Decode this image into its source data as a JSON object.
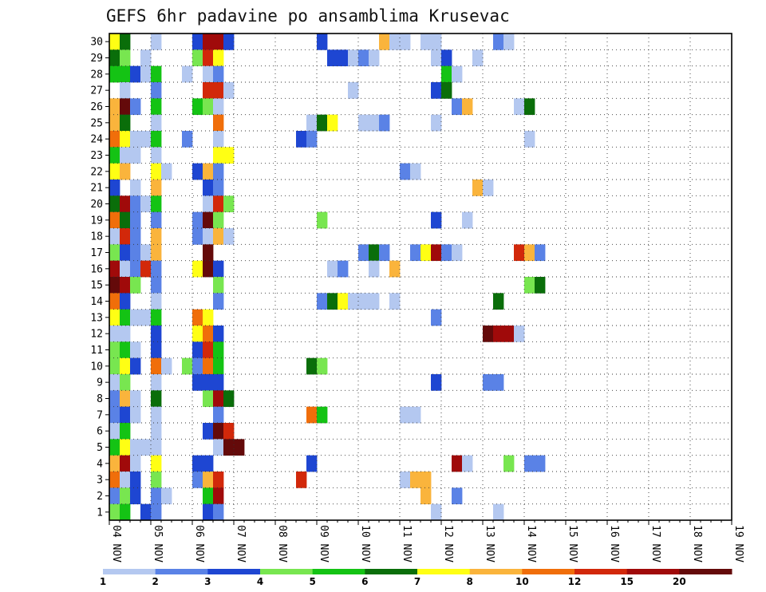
{
  "chart_data": {
    "type": "heatmap",
    "title": "GEFS 6hr padavine po ansamblima Krusevac",
    "y_categories": [
      "1",
      "2",
      "3",
      "4",
      "5",
      "6",
      "7",
      "8",
      "9",
      "10",
      "11",
      "12",
      "13",
      "14",
      "15",
      "16",
      "17",
      "18",
      "19",
      "20",
      "21",
      "22",
      "23",
      "24",
      "25",
      "26",
      "27",
      "28",
      "29",
      "30"
    ],
    "x_tick_labels": [
      "04 NOV",
      "05 NOV",
      "06 NOV",
      "07 NOV",
      "08 NOV",
      "09 NOV",
      "10 NOV",
      "11 NOV",
      "12 NOV",
      "13 NOV",
      "14 NOV",
      "15 NOV",
      "16 NOV",
      "17 NOV",
      "18 NOV",
      "19 NOV"
    ],
    "time_steps_per_day": 4,
    "grid": true,
    "colorbar": {
      "labels": [
        "1",
        "2",
        "3",
        "4",
        "5",
        "6",
        "7",
        "8",
        "10",
        "12",
        "15",
        "20"
      ],
      "colors": [
        "#b4c8f0",
        "#5a82e6",
        "#1e46d2",
        "#78e650",
        "#14c314",
        "#0a6e0a",
        "#ffff14",
        "#fab43c",
        "#f06e0a",
        "#d2280a",
        "#a00a0a",
        "#640a0a"
      ]
    },
    "cells": [
      [
        30,
        0,
        7
      ],
      [
        30,
        1,
        6
      ],
      [
        30,
        4,
        1
      ],
      [
        30,
        8,
        3
      ],
      [
        30,
        9,
        11
      ],
      [
        30,
        10,
        11
      ],
      [
        30,
        11,
        3
      ],
      [
        30,
        20,
        3
      ],
      [
        30,
        26,
        8
      ],
      [
        30,
        27,
        1
      ],
      [
        30,
        28,
        1
      ],
      [
        30,
        30,
        1
      ],
      [
        30,
        31,
        1
      ],
      [
        30,
        37,
        2
      ],
      [
        30,
        38,
        1
      ],
      [
        29,
        0,
        6
      ],
      [
        29,
        1,
        4
      ],
      [
        29,
        3,
        1
      ],
      [
        29,
        8,
        4
      ],
      [
        29,
        9,
        10
      ],
      [
        29,
        10,
        7
      ],
      [
        29,
        21,
        3
      ],
      [
        29,
        22,
        3
      ],
      [
        29,
        23,
        1
      ],
      [
        29,
        24,
        2
      ],
      [
        29,
        25,
        1
      ],
      [
        29,
        31,
        1
      ],
      [
        29,
        32,
        3
      ],
      [
        29,
        35,
        1
      ],
      [
        28,
        0,
        5
      ],
      [
        28,
        1,
        5
      ],
      [
        28,
        2,
        3
      ],
      [
        28,
        3,
        1
      ],
      [
        28,
        4,
        5
      ],
      [
        28,
        7,
        1
      ],
      [
        28,
        9,
        1
      ],
      [
        28,
        10,
        2
      ],
      [
        28,
        32,
        5
      ],
      [
        28,
        33,
        1
      ],
      [
        27,
        1,
        1
      ],
      [
        27,
        4,
        2
      ],
      [
        27,
        9,
        10
      ],
      [
        27,
        10,
        10
      ],
      [
        27,
        11,
        1
      ],
      [
        27,
        23,
        1
      ],
      [
        27,
        31,
        3
      ],
      [
        27,
        32,
        6
      ],
      [
        26,
        0,
        8
      ],
      [
        26,
        1,
        12
      ],
      [
        26,
        2,
        2
      ],
      [
        26,
        4,
        5
      ],
      [
        26,
        8,
        5
      ],
      [
        26,
        9,
        4
      ],
      [
        26,
        10,
        1
      ],
      [
        26,
        33,
        2
      ],
      [
        26,
        34,
        8
      ],
      [
        26,
        39,
        1
      ],
      [
        26,
        40,
        6
      ],
      [
        25,
        0,
        8
      ],
      [
        25,
        1,
        6
      ],
      [
        25,
        4,
        1
      ],
      [
        25,
        10,
        9
      ],
      [
        25,
        19,
        1
      ],
      [
        25,
        20,
        6
      ],
      [
        25,
        21,
        7
      ],
      [
        25,
        24,
        1
      ],
      [
        25,
        25,
        1
      ],
      [
        25,
        26,
        2
      ],
      [
        25,
        31,
        1
      ],
      [
        24,
        0,
        9
      ],
      [
        24,
        1,
        7
      ],
      [
        24,
        2,
        1
      ],
      [
        24,
        3,
        1
      ],
      [
        24,
        4,
        5
      ],
      [
        24,
        7,
        2
      ],
      [
        24,
        10,
        1
      ],
      [
        24,
        18,
        3
      ],
      [
        24,
        19,
        2
      ],
      [
        24,
        40,
        1
      ],
      [
        23,
        0,
        5
      ],
      [
        23,
        1,
        1
      ],
      [
        23,
        2,
        1
      ],
      [
        23,
        4,
        1
      ],
      [
        23,
        10,
        7
      ],
      [
        23,
        11,
        7
      ],
      [
        22,
        0,
        7
      ],
      [
        22,
        1,
        8
      ],
      [
        22,
        4,
        7
      ],
      [
        22,
        5,
        1
      ],
      [
        22,
        8,
        3
      ],
      [
        22,
        9,
        8
      ],
      [
        22,
        10,
        2
      ],
      [
        22,
        28,
        2
      ],
      [
        22,
        29,
        1
      ],
      [
        21,
        0,
        3
      ],
      [
        21,
        2,
        1
      ],
      [
        21,
        4,
        8
      ],
      [
        21,
        9,
        3
      ],
      [
        21,
        10,
        2
      ],
      [
        21,
        35,
        8
      ],
      [
        21,
        36,
        1
      ],
      [
        20,
        0,
        6
      ],
      [
        20,
        1,
        11
      ],
      [
        20,
        2,
        2
      ],
      [
        20,
        3,
        1
      ],
      [
        20,
        4,
        5
      ],
      [
        20,
        9,
        1
      ],
      [
        20,
        10,
        10
      ],
      [
        20,
        11,
        4
      ],
      [
        19,
        0,
        9
      ],
      [
        19,
        1,
        6
      ],
      [
        19,
        2,
        2
      ],
      [
        19,
        4,
        2
      ],
      [
        19,
        8,
        2
      ],
      [
        19,
        9,
        12
      ],
      [
        19,
        10,
        4
      ],
      [
        19,
        20,
        4
      ],
      [
        19,
        31,
        3
      ],
      [
        19,
        34,
        1
      ],
      [
        18,
        0,
        1
      ],
      [
        18,
        1,
        10
      ],
      [
        18,
        2,
        2
      ],
      [
        18,
        4,
        8
      ],
      [
        18,
        8,
        2
      ],
      [
        18,
        9,
        1
      ],
      [
        18,
        10,
        8
      ],
      [
        18,
        11,
        1
      ],
      [
        17,
        0,
        4
      ],
      [
        17,
        1,
        3
      ],
      [
        17,
        2,
        2
      ],
      [
        17,
        3,
        1
      ],
      [
        17,
        4,
        8
      ],
      [
        17,
        9,
        12
      ],
      [
        17,
        24,
        2
      ],
      [
        17,
        25,
        6
      ],
      [
        17,
        26,
        2
      ],
      [
        17,
        29,
        2
      ],
      [
        17,
        30,
        7
      ],
      [
        17,
        31,
        11
      ],
      [
        17,
        32,
        2
      ],
      [
        17,
        33,
        1
      ],
      [
        17,
        39,
        10
      ],
      [
        17,
        40,
        8
      ],
      [
        17,
        41,
        2
      ],
      [
        16,
        0,
        11
      ],
      [
        16,
        1,
        1
      ],
      [
        16,
        2,
        2
      ],
      [
        16,
        3,
        10
      ],
      [
        16,
        4,
        2
      ],
      [
        16,
        8,
        7
      ],
      [
        16,
        9,
        12
      ],
      [
        16,
        10,
        3
      ],
      [
        16,
        21,
        1
      ],
      [
        16,
        22,
        2
      ],
      [
        16,
        25,
        1
      ],
      [
        16,
        27,
        8
      ],
      [
        15,
        0,
        12
      ],
      [
        15,
        1,
        11
      ],
      [
        15,
        2,
        4
      ],
      [
        15,
        4,
        2
      ],
      [
        15,
        10,
        4
      ],
      [
        15,
        40,
        4
      ],
      [
        15,
        41,
        6
      ],
      [
        14,
        0,
        9
      ],
      [
        14,
        1,
        3
      ],
      [
        14,
        4,
        1
      ],
      [
        14,
        10,
        2
      ],
      [
        14,
        20,
        2
      ],
      [
        14,
        21,
        6
      ],
      [
        14,
        22,
        7
      ],
      [
        14,
        23,
        1
      ],
      [
        14,
        24,
        1
      ],
      [
        14,
        25,
        1
      ],
      [
        14,
        27,
        1
      ],
      [
        14,
        37,
        6
      ],
      [
        13,
        0,
        7
      ],
      [
        13,
        1,
        5
      ],
      [
        13,
        2,
        1
      ],
      [
        13,
        3,
        1
      ],
      [
        13,
        4,
        5
      ],
      [
        13,
        8,
        9
      ],
      [
        13,
        9,
        7
      ],
      [
        13,
        31,
        2
      ],
      [
        12,
        0,
        1
      ],
      [
        12,
        1,
        1
      ],
      [
        12,
        4,
        3
      ],
      [
        12,
        8,
        7
      ],
      [
        12,
        9,
        9
      ],
      [
        12,
        10,
        3
      ],
      [
        12,
        36,
        12
      ],
      [
        12,
        37,
        11
      ],
      [
        12,
        38,
        11
      ],
      [
        12,
        39,
        1
      ],
      [
        11,
        0,
        4
      ],
      [
        11,
        1,
        5
      ],
      [
        11,
        2,
        1
      ],
      [
        11,
        4,
        3
      ],
      [
        11,
        8,
        3
      ],
      [
        11,
        9,
        10
      ],
      [
        11,
        10,
        5
      ],
      [
        10,
        0,
        4
      ],
      [
        10,
        1,
        7
      ],
      [
        10,
        2,
        3
      ],
      [
        10,
        4,
        9
      ],
      [
        10,
        5,
        1
      ],
      [
        10,
        7,
        4
      ],
      [
        10,
        8,
        2
      ],
      [
        10,
        9,
        9
      ],
      [
        10,
        10,
        5
      ],
      [
        10,
        19,
        6
      ],
      [
        10,
        20,
        4
      ],
      [
        9,
        0,
        1
      ],
      [
        9,
        1,
        4
      ],
      [
        9,
        4,
        1
      ],
      [
        9,
        8,
        3
      ],
      [
        9,
        9,
        3
      ],
      [
        9,
        10,
        3
      ],
      [
        9,
        31,
        3
      ],
      [
        9,
        36,
        2
      ],
      [
        9,
        37,
        2
      ],
      [
        8,
        0,
        2
      ],
      [
        8,
        1,
        8
      ],
      [
        8,
        2,
        1
      ],
      [
        8,
        4,
        6
      ],
      [
        8,
        9,
        4
      ],
      [
        8,
        10,
        11
      ],
      [
        8,
        11,
        6
      ],
      [
        7,
        0,
        2
      ],
      [
        7,
        1,
        3
      ],
      [
        7,
        2,
        1
      ],
      [
        7,
        4,
        1
      ],
      [
        7,
        10,
        2
      ],
      [
        7,
        19,
        9
      ],
      [
        7,
        20,
        5
      ],
      [
        7,
        28,
        1
      ],
      [
        7,
        29,
        1
      ],
      [
        6,
        0,
        1
      ],
      [
        6,
        1,
        5
      ],
      [
        6,
        4,
        1
      ],
      [
        6,
        9,
        3
      ],
      [
        6,
        10,
        12
      ],
      [
        6,
        11,
        10
      ],
      [
        5,
        0,
        5
      ],
      [
        5,
        1,
        7
      ],
      [
        5,
        2,
        1
      ],
      [
        5,
        3,
        1
      ],
      [
        5,
        4,
        1
      ],
      [
        5,
        10,
        1
      ],
      [
        5,
        11,
        12
      ],
      [
        5,
        12,
        12
      ],
      [
        4,
        0,
        8
      ],
      [
        4,
        1,
        11
      ],
      [
        4,
        2,
        1
      ],
      [
        4,
        4,
        7
      ],
      [
        4,
        8,
        3
      ],
      [
        4,
        9,
        3
      ],
      [
        4,
        19,
        3
      ],
      [
        4,
        33,
        11
      ],
      [
        4,
        34,
        1
      ],
      [
        4,
        38,
        4
      ],
      [
        4,
        40,
        2
      ],
      [
        4,
        41,
        2
      ],
      [
        3,
        0,
        9
      ],
      [
        3,
        1,
        1
      ],
      [
        3,
        2,
        3
      ],
      [
        3,
        4,
        4
      ],
      [
        3,
        8,
        2
      ],
      [
        3,
        9,
        8
      ],
      [
        3,
        10,
        10
      ],
      [
        3,
        18,
        10
      ],
      [
        3,
        28,
        1
      ],
      [
        3,
        29,
        8
      ],
      [
        3,
        30,
        8
      ],
      [
        2,
        0,
        2
      ],
      [
        2,
        1,
        4
      ],
      [
        2,
        2,
        3
      ],
      [
        2,
        4,
        2
      ],
      [
        2,
        5,
        1
      ],
      [
        2,
        9,
        5
      ],
      [
        2,
        10,
        11
      ],
      [
        2,
        30,
        8
      ],
      [
        2,
        33,
        2
      ],
      [
        1,
        0,
        4
      ],
      [
        1,
        1,
        5
      ],
      [
        1,
        3,
        3
      ],
      [
        1,
        4,
        2
      ],
      [
        1,
        9,
        3
      ],
      [
        1,
        10,
        2
      ],
      [
        1,
        31,
        1
      ],
      [
        1,
        37,
        1
      ]
    ]
  }
}
